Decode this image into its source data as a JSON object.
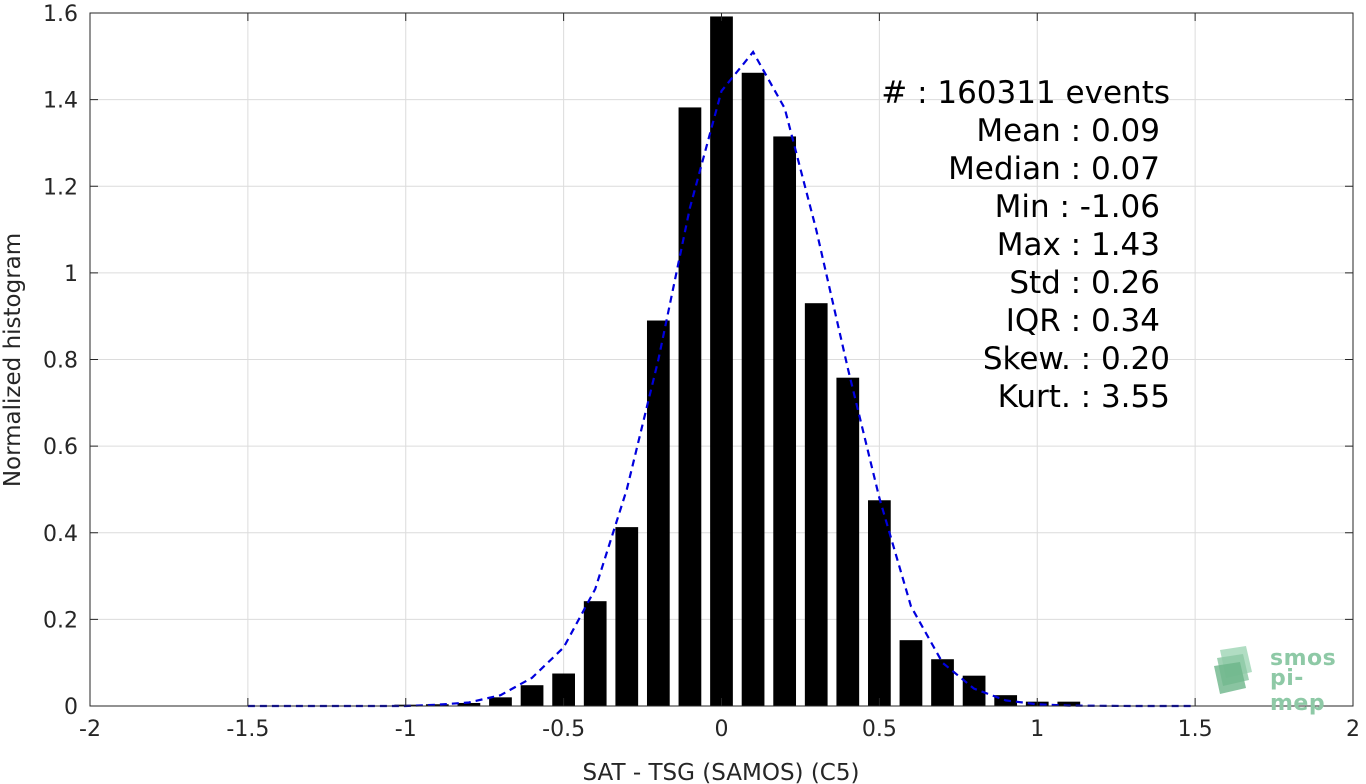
{
  "chart_data": {
    "type": "bar",
    "xlabel": "SAT - TSG (SAMOS) (C5)",
    "ylabel": "Normalized histogram",
    "xlim": [
      -2,
      2
    ],
    "ylim": [
      0,
      1.6
    ],
    "xticks": [
      "-2",
      "-1.5",
      "-1",
      "-0.5",
      "0",
      "0.5",
      "1",
      "1.5",
      "2"
    ],
    "yticks": [
      "0",
      "0.2",
      "0.4",
      "0.6",
      "0.8",
      "1",
      "1.2",
      "1.4",
      "1.6"
    ],
    "grid": true,
    "bin_width": 0.1,
    "bins": [
      {
        "x": -1.0,
        "y": 0.003
      },
      {
        "x": -0.9,
        "y": 0.004
      },
      {
        "x": -0.8,
        "y": 0.007
      },
      {
        "x": -0.7,
        "y": 0.02
      },
      {
        "x": -0.6,
        "y": 0.048
      },
      {
        "x": -0.5,
        "y": 0.075
      },
      {
        "x": -0.4,
        "y": 0.242
      },
      {
        "x": -0.3,
        "y": 0.413
      },
      {
        "x": -0.2,
        "y": 0.89
      },
      {
        "x": -0.1,
        "y": 1.382
      },
      {
        "x": 0.0,
        "y": 1.592
      },
      {
        "x": 0.1,
        "y": 1.462
      },
      {
        "x": 0.2,
        "y": 1.315
      },
      {
        "x": 0.3,
        "y": 0.93
      },
      {
        "x": 0.4,
        "y": 0.758
      },
      {
        "x": 0.5,
        "y": 0.475
      },
      {
        "x": 0.6,
        "y": 0.152
      },
      {
        "x": 0.7,
        "y": 0.108
      },
      {
        "x": 0.8,
        "y": 0.07
      },
      {
        "x": 0.9,
        "y": 0.025
      },
      {
        "x": 1.0,
        "y": 0.01
      },
      {
        "x": 1.1,
        "y": 0.01
      }
    ],
    "bar_color": "#000000",
    "fit_curve": {
      "style": "dashed",
      "color": "#0000dd",
      "points": [
        [
          -1.5,
          0.0
        ],
        [
          -1.3,
          0.0
        ],
        [
          -1.1,
          0.0
        ],
        [
          -1.0,
          0.0
        ],
        [
          -0.9,
          0.003
        ],
        [
          -0.8,
          0.008
        ],
        [
          -0.7,
          0.025
        ],
        [
          -0.6,
          0.065
        ],
        [
          -0.5,
          0.135
        ],
        [
          -0.4,
          0.27
        ],
        [
          -0.3,
          0.5
        ],
        [
          -0.2,
          0.8
        ],
        [
          -0.1,
          1.15
        ],
        [
          0.0,
          1.42
        ],
        [
          0.1,
          1.51
        ],
        [
          0.2,
          1.38
        ],
        [
          0.3,
          1.1
        ],
        [
          0.4,
          0.78
        ],
        [
          0.5,
          0.48
        ],
        [
          0.6,
          0.23
        ],
        [
          0.7,
          0.1
        ],
        [
          0.8,
          0.04
        ],
        [
          0.9,
          0.013
        ],
        [
          1.0,
          0.004
        ],
        [
          1.1,
          0.001
        ],
        [
          1.3,
          0.0
        ],
        [
          1.5,
          0.0
        ]
      ]
    }
  },
  "stats": {
    "events": "#  : 160311 events",
    "mean": "Mean : 0.09",
    "median": "Median : 0.07",
    "min": "Min : -1.06",
    "max": "Max : 1.43",
    "std": "Std : 0.26",
    "iqr": "IQR : 0.34",
    "skew": "Skew. : 0.20",
    "kurt": "Kurt. : 3.55"
  },
  "logo": {
    "line1": "smos",
    "line2": "pi-mep"
  }
}
